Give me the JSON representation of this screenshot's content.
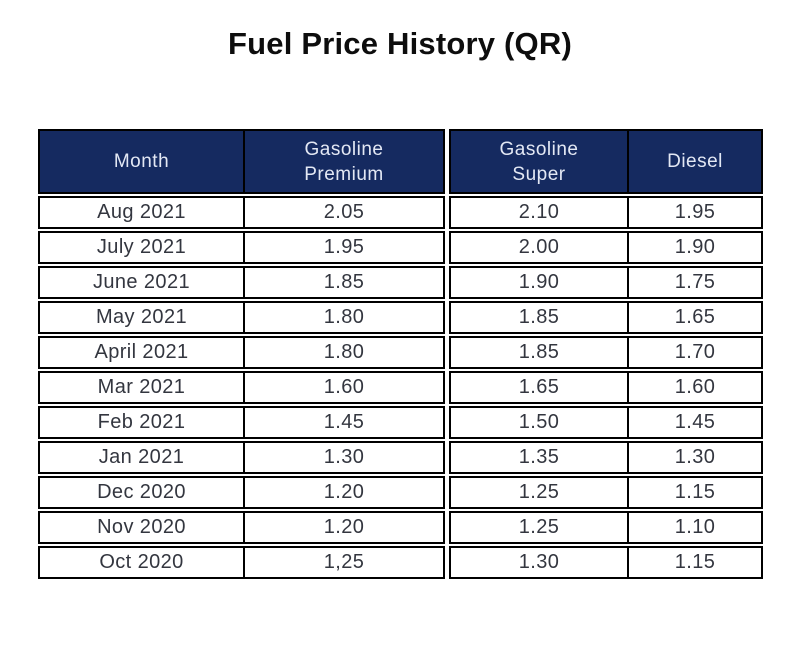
{
  "page": {
    "title": "Fuel Price History (QR)"
  },
  "table": {
    "columns": [
      "Month",
      "Gasoline Premium",
      "Gasoline Super",
      "Diesel"
    ],
    "rows": [
      {
        "month": "Aug 2021",
        "premium": "2.05",
        "super": "2.10",
        "diesel": "1.95"
      },
      {
        "month": "July 2021",
        "premium": "1.95",
        "super": "2.00",
        "diesel": "1.90"
      },
      {
        "month": "June 2021",
        "premium": "1.85",
        "super": "1.90",
        "diesel": "1.75"
      },
      {
        "month": "May 2021",
        "premium": "1.80",
        "super": "1.85",
        "diesel": "1.65"
      },
      {
        "month": "April 2021",
        "premium": "1.80",
        "super": "1.85",
        "diesel": "1.70"
      },
      {
        "month": "Mar 2021",
        "premium": "1.60",
        "super": "1.65",
        "diesel": "1.60"
      },
      {
        "month": "Feb 2021",
        "premium": "1.45",
        "super": "1.50",
        "diesel": "1.45"
      },
      {
        "month": "Jan 2021",
        "premium": "1.30",
        "super": "1.35",
        "diesel": "1.30"
      },
      {
        "month": "Dec 2020",
        "premium": "1.20",
        "super": "1.25",
        "diesel": "1.15"
      },
      {
        "month": "Nov 2020",
        "premium": "1.20",
        "super": "1.25",
        "diesel": "1.10"
      },
      {
        "month": "Oct 2020",
        "premium": "1,25",
        "super": "1.30",
        "diesel": "1.15"
      }
    ]
  },
  "colors": {
    "header_bg": "#152a60",
    "header_text": "#e3e8f4",
    "body_text": "#33363f",
    "border": "#000000",
    "page_bg": "#ffffff"
  },
  "chart_data": {
    "type": "table",
    "title": "Fuel Price History (QR)",
    "categories": [
      "Aug 2021",
      "July 2021",
      "June 2021",
      "May 2021",
      "April 2021",
      "Mar 2021",
      "Feb 2021",
      "Jan 2021",
      "Dec 2020",
      "Nov 2020",
      "Oct 2020"
    ],
    "series": [
      {
        "name": "Gasoline Premium",
        "values": [
          2.05,
          1.95,
          1.85,
          1.8,
          1.8,
          1.6,
          1.45,
          1.3,
          1.2,
          1.2,
          1.25
        ]
      },
      {
        "name": "Gasoline Super",
        "values": [
          2.1,
          2.0,
          1.9,
          1.85,
          1.85,
          1.65,
          1.5,
          1.35,
          1.25,
          1.25,
          1.3
        ]
      },
      {
        "name": "Diesel",
        "values": [
          1.95,
          1.9,
          1.75,
          1.65,
          1.7,
          1.6,
          1.45,
          1.3,
          1.15,
          1.1,
          1.15
        ]
      }
    ]
  }
}
